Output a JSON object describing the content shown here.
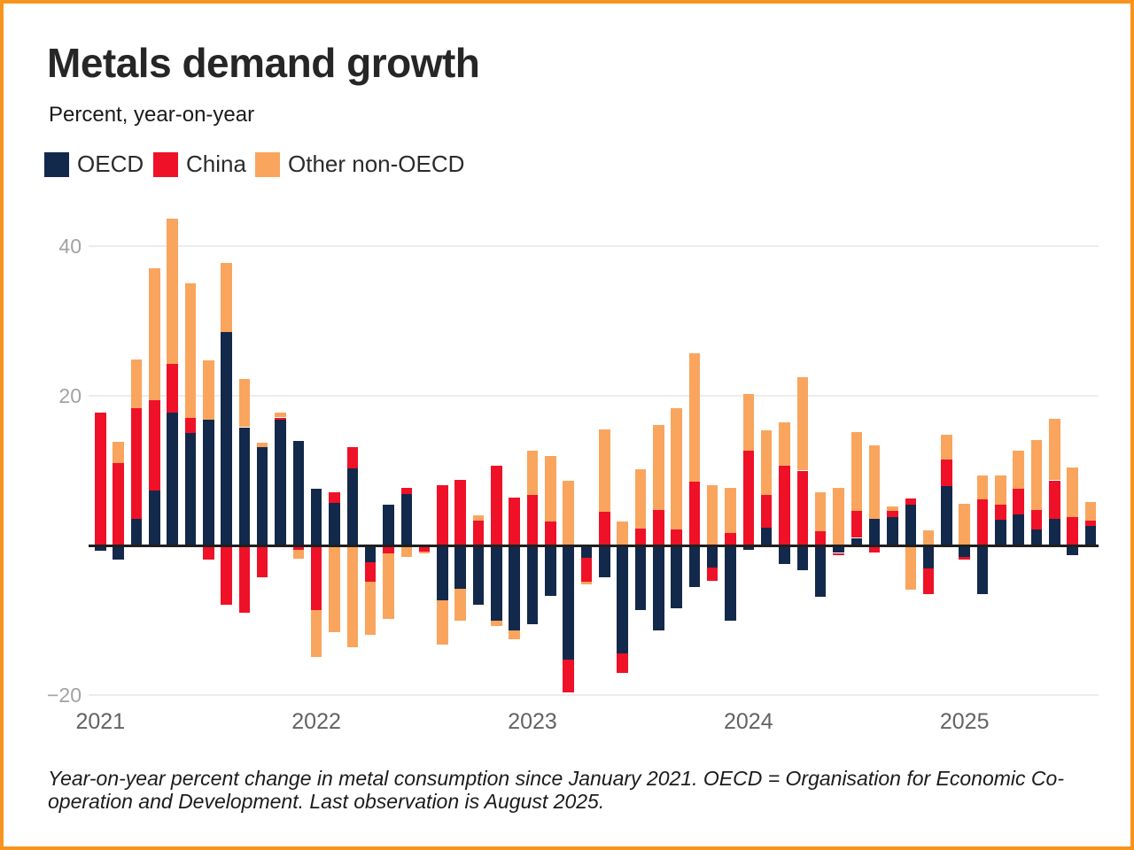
{
  "frame": {
    "border_color": "#f7941d"
  },
  "header": {
    "title": "Metals demand growth",
    "subtitle": "Percent, year-on-year"
  },
  "legend": [
    {
      "label": "OECD",
      "color": "#13294b"
    },
    {
      "label": "China",
      "color": "#ee1128"
    },
    {
      "label": "Other non-OECD",
      "color": "#f9a55e"
    }
  ],
  "footnote": {
    "line1": "Year-on-year percent change in metal consumption since January 2021. OECD = Organisation for Economic Co-",
    "line2": "operation and Development. Last observation is August 2025."
  },
  "chart_data": {
    "type": "bar",
    "stacked": true,
    "title": "Metals demand growth",
    "ylabel": "Percent, year-on-year",
    "ylim": [
      -20,
      44
    ],
    "grid": true,
    "legend_position": "top-left",
    "yticks": [
      {
        "v": 40,
        "label": "40"
      },
      {
        "v": 20,
        "label": "20"
      },
      {
        "v": 0,
        "label": ""
      },
      {
        "v": -20,
        "label": "−20"
      }
    ],
    "x_year_labels": [
      "2021",
      "2022",
      "2023",
      "2024",
      "2025"
    ],
    "categories": [
      "Jan 2021",
      "Feb 2021",
      "Mar 2021",
      "Apr 2021",
      "May 2021",
      "Jun 2021",
      "Jul 2021",
      "Aug 2021",
      "Sep 2021",
      "Oct 2021",
      "Nov 2021",
      "Dec 2021",
      "Jan 2022",
      "Feb 2022",
      "Mar 2022",
      "Apr 2022",
      "May 2022",
      "Jun 2022",
      "Jul 2022",
      "Aug 2022",
      "Sep 2022",
      "Oct 2022",
      "Nov 2022",
      "Dec 2022",
      "Jan 2023",
      "Feb 2023",
      "Mar 2023",
      "Apr 2023",
      "May 2023",
      "Jun 2023",
      "Jul 2023",
      "Aug 2023",
      "Sep 2023",
      "Oct 2023",
      "Nov 2023",
      "Dec 2023",
      "Jan 2024",
      "Feb 2024",
      "Mar 2024",
      "Apr 2024",
      "May 2024",
      "Jun 2024",
      "Jul 2024",
      "Aug 2024",
      "Sep 2024",
      "Oct 2024",
      "Nov 2024",
      "Dec 2024",
      "Jan 2025",
      "Feb 2025",
      "Mar 2025",
      "Apr 2025",
      "May 2025",
      "Jun 2025",
      "Jul 2025",
      "Aug 2025"
    ],
    "series": [
      {
        "name": "OECD",
        "color": "#13294b",
        "values": [
          -0.7,
          -1.9,
          3.5,
          7.3,
          17.7,
          15.0,
          16.8,
          28.5,
          15.8,
          13.1,
          16.8,
          14.0,
          7.6,
          5.7,
          10.3,
          -2.3,
          5.4,
          6.9,
          0,
          -7.3,
          -5.8,
          -7.9,
          -10.0,
          -11.4,
          -10.5,
          -6.7,
          -15.3,
          -1.7,
          -4.3,
          -14.4,
          -8.6,
          -11.3,
          -8.4,
          -5.5,
          -3.0,
          -10.0,
          -0.6,
          2.4,
          -2.5,
          -3.3,
          -6.9,
          -1.0,
          1.0,
          3.6,
          3.8,
          5.4,
          -3.1,
          7.9,
          -1.5,
          -6.5,
          3.4,
          4.1,
          2.1,
          3.6,
          -1.3,
          2.6
        ]
      },
      {
        "name": "China",
        "color": "#ee1128",
        "values": [
          17.7,
          11.0,
          14.8,
          12.1,
          6.6,
          2.0,
          -1.9,
          -7.9,
          -9.0,
          -4.2,
          0.3,
          -0.6,
          -8.6,
          1.4,
          2.8,
          -2.6,
          -1.1,
          0.8,
          -0.8,
          8.1,
          8.8,
          3.3,
          10.7,
          6.4,
          6.7,
          3.2,
          -4.3,
          -3.2,
          4.5,
          -2.6,
          2.2,
          4.8,
          2.1,
          8.5,
          -1.7,
          1.7,
          12.7,
          4.3,
          10.6,
          10.0,
          1.9,
          -0.3,
          3.6,
          -1.0,
          0.8,
          0.9,
          -3.4,
          3.6,
          -0.4,
          6.2,
          2.0,
          3.5,
          2.6,
          5.1,
          3.8,
          0.7
        ]
      },
      {
        "name": "Other non-OECD",
        "color": "#f9a55e",
        "values": [
          0,
          2.8,
          6.6,
          17.7,
          19.4,
          18.0,
          7.9,
          9.3,
          6.5,
          0.6,
          0.6,
          -1.2,
          -6.3,
          -11.6,
          -13.6,
          -7.1,
          -8.7,
          -1.5,
          -0.3,
          -5.9,
          -4.3,
          0.7,
          -0.8,
          -1.2,
          6.0,
          8.8,
          8.6,
          -0.3,
          11.0,
          3.2,
          8.0,
          11.3,
          16.3,
          17.2,
          8.0,
          6.0,
          7.6,
          8.7,
          5.9,
          12.5,
          5.2,
          7.7,
          10.6,
          9.8,
          0.6,
          -5.9,
          2.0,
          3.3,
          5.6,
          3.2,
          4.0,
          5.1,
          9.4,
          8.2,
          6.6,
          2.5
        ]
      }
    ]
  }
}
